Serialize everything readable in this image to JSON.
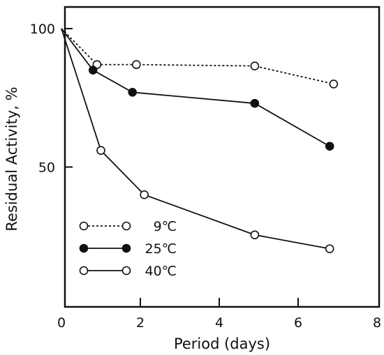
{
  "chart_data": {
    "type": "line",
    "title": "",
    "xlabel": "Period (days)",
    "ylabel": "Residual Activity, %",
    "xlim": [
      0,
      8
    ],
    "ylim": [
      0,
      100
    ],
    "x_ticks": [
      "0",
      "2",
      "4",
      "6",
      "8"
    ],
    "x_tick_values": [
      0,
      2,
      4,
      6,
      8
    ],
    "y_ticks": [
      "50",
      "100"
    ],
    "y_tick_values": [
      50,
      100
    ],
    "grid": false,
    "legend_position": "lower-left",
    "series": [
      {
        "name": "9℃",
        "line_style": "dotted",
        "marker": "open-circle",
        "color": "#111111",
        "points": [
          [
            0,
            100
          ],
          [
            0.9,
            87
          ],
          [
            1.9,
            87
          ],
          [
            4.9,
            86.5
          ],
          [
            6.9,
            80
          ]
        ]
      },
      {
        "name": "25℃",
        "line_style": "solid",
        "marker": "filled-circle",
        "color": "#111111",
        "points": [
          [
            0,
            100
          ],
          [
            0.8,
            85
          ],
          [
            1.8,
            77
          ],
          [
            4.9,
            73
          ],
          [
            6.8,
            57.5
          ]
        ]
      },
      {
        "name": "40℃",
        "line_style": "solid",
        "marker": "open-circle",
        "color": "#111111",
        "points": [
          [
            0,
            100
          ],
          [
            1.0,
            56
          ],
          [
            2.1,
            40
          ],
          [
            4.9,
            25.5
          ],
          [
            6.8,
            20.5
          ]
        ]
      }
    ]
  }
}
